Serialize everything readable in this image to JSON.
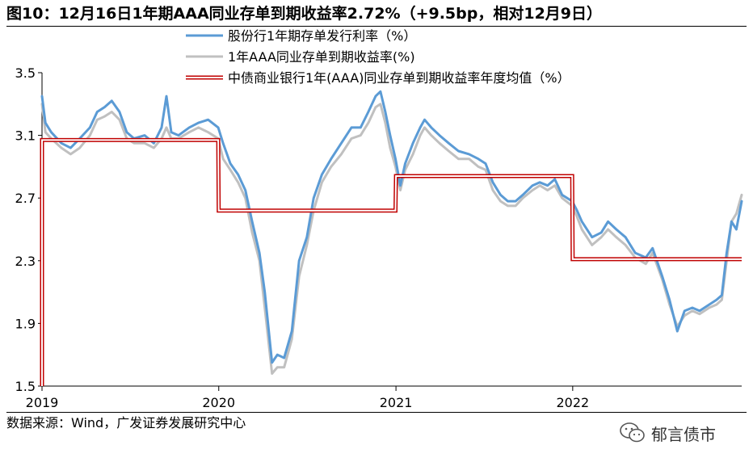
{
  "page": {
    "title": "图10：12月16日1年期AAA同业存单到期收益率2.72%（+9.5bp，相对12月9日）",
    "source": "数据来源：Wind，广发证券发展研究中心",
    "watermark": "郁言债市",
    "watermark_icon": "wechat-icon"
  },
  "chart_data": {
    "type": "line",
    "title": "",
    "xlabel": "",
    "ylabel": "",
    "x_ticks": [
      "2019",
      "2020",
      "2021",
      "2022"
    ],
    "y_ticks": [
      "1.5",
      "1.9",
      "2.3",
      "2.7",
      "3.1",
      "3.5"
    ],
    "xlim": [
      "2019-01-01",
      "2022-12-16"
    ],
    "ylim": [
      1.5,
      3.5
    ],
    "grid": false,
    "legend_position": "top-center",
    "series": [
      {
        "name": "股份行1年期存单发行利率（%）",
        "color": "#5b9bd5",
        "style": "line",
        "points": [
          [
            "2019-01-01",
            3.35
          ],
          [
            "2019-01-08",
            3.18
          ],
          [
            "2019-01-20",
            3.12
          ],
          [
            "2019-02-10",
            3.05
          ],
          [
            "2019-03-01",
            3.02
          ],
          [
            "2019-03-20",
            3.08
          ],
          [
            "2019-04-10",
            3.15
          ],
          [
            "2019-04-25",
            3.25
          ],
          [
            "2019-05-10",
            3.28
          ],
          [
            "2019-05-25",
            3.32
          ],
          [
            "2019-06-10",
            3.25
          ],
          [
            "2019-06-25",
            3.12
          ],
          [
            "2019-07-10",
            3.08
          ],
          [
            "2019-08-01",
            3.1
          ],
          [
            "2019-08-20",
            3.05
          ],
          [
            "2019-09-05",
            3.15
          ],
          [
            "2019-09-15",
            3.35
          ],
          [
            "2019-09-25",
            3.12
          ],
          [
            "2019-10-10",
            3.1
          ],
          [
            "2019-11-01",
            3.15
          ],
          [
            "2019-11-20",
            3.18
          ],
          [
            "2019-12-10",
            3.2
          ],
          [
            "2019-12-31",
            3.15
          ],
          [
            "2020-01-10",
            3.05
          ],
          [
            "2020-01-25",
            2.92
          ],
          [
            "2020-02-10",
            2.85
          ],
          [
            "2020-02-25",
            2.75
          ],
          [
            "2020-03-10",
            2.55
          ],
          [
            "2020-03-25",
            2.35
          ],
          [
            "2020-04-05",
            2.1
          ],
          [
            "2020-04-20",
            1.65
          ],
          [
            "2020-05-01",
            1.7
          ],
          [
            "2020-05-15",
            1.68
          ],
          [
            "2020-05-31",
            1.85
          ],
          [
            "2020-06-15",
            2.3
          ],
          [
            "2020-07-01",
            2.45
          ],
          [
            "2020-07-15",
            2.7
          ],
          [
            "2020-08-01",
            2.85
          ],
          [
            "2020-08-20",
            2.95
          ],
          [
            "2020-09-10",
            3.05
          ],
          [
            "2020-10-01",
            3.15
          ],
          [
            "2020-10-20",
            3.15
          ],
          [
            "2020-11-05",
            3.25
          ],
          [
            "2020-11-20",
            3.35
          ],
          [
            "2020-11-30",
            3.38
          ],
          [
            "2020-12-10",
            3.25
          ],
          [
            "2020-12-20",
            3.1
          ],
          [
            "2020-12-31",
            2.95
          ],
          [
            "2021-01-10",
            2.78
          ],
          [
            "2021-01-20",
            2.92
          ],
          [
            "2021-02-05",
            3.05
          ],
          [
            "2021-02-20",
            3.15
          ],
          [
            "2021-03-01",
            3.2
          ],
          [
            "2021-03-15",
            3.15
          ],
          [
            "2021-04-01",
            3.1
          ],
          [
            "2021-04-20",
            3.05
          ],
          [
            "2021-05-10",
            3.0
          ],
          [
            "2021-06-01",
            2.98
          ],
          [
            "2021-06-20",
            2.95
          ],
          [
            "2021-07-05",
            2.92
          ],
          [
            "2021-07-20",
            2.8
          ],
          [
            "2021-08-05",
            2.72
          ],
          [
            "2021-08-20",
            2.68
          ],
          [
            "2021-09-05",
            2.68
          ],
          [
            "2021-09-20",
            2.72
          ],
          [
            "2021-10-10",
            2.78
          ],
          [
            "2021-10-25",
            2.8
          ],
          [
            "2021-11-10",
            2.78
          ],
          [
            "2021-11-25",
            2.82
          ],
          [
            "2021-12-10",
            2.72
          ],
          [
            "2021-12-31",
            2.68
          ],
          [
            "2022-01-10",
            2.62
          ],
          [
            "2022-01-20",
            2.55
          ],
          [
            "2022-02-10",
            2.45
          ],
          [
            "2022-03-01",
            2.48
          ],
          [
            "2022-03-15",
            2.55
          ],
          [
            "2022-04-01",
            2.5
          ],
          [
            "2022-04-20",
            2.45
          ],
          [
            "2022-05-10",
            2.35
          ],
          [
            "2022-06-01",
            2.32
          ],
          [
            "2022-06-15",
            2.38
          ],
          [
            "2022-07-05",
            2.2
          ],
          [
            "2022-07-20",
            2.05
          ],
          [
            "2022-08-05",
            1.85
          ],
          [
            "2022-08-20",
            1.98
          ],
          [
            "2022-09-05",
            2.0
          ],
          [
            "2022-09-20",
            1.98
          ],
          [
            "2022-10-10",
            2.02
          ],
          [
            "2022-10-25",
            2.05
          ],
          [
            "2022-11-05",
            2.08
          ],
          [
            "2022-11-15",
            2.35
          ],
          [
            "2022-11-25",
            2.55
          ],
          [
            "2022-12-05",
            2.5
          ],
          [
            "2022-12-16",
            2.68
          ]
        ]
      },
      {
        "name": "1年AAA同业存单到期收益率(%)",
        "color": "#c0c0c0",
        "style": "line",
        "points": [
          [
            "2019-01-01",
            3.3
          ],
          [
            "2019-01-08",
            3.12
          ],
          [
            "2019-01-20",
            3.08
          ],
          [
            "2019-02-10",
            3.02
          ],
          [
            "2019-03-01",
            2.98
          ],
          [
            "2019-03-20",
            3.02
          ],
          [
            "2019-04-10",
            3.1
          ],
          [
            "2019-04-25",
            3.2
          ],
          [
            "2019-05-10",
            3.22
          ],
          [
            "2019-05-25",
            3.25
          ],
          [
            "2019-06-10",
            3.2
          ],
          [
            "2019-06-25",
            3.08
          ],
          [
            "2019-07-10",
            3.05
          ],
          [
            "2019-08-01",
            3.05
          ],
          [
            "2019-08-20",
            3.02
          ],
          [
            "2019-09-05",
            3.08
          ],
          [
            "2019-09-15",
            3.15
          ],
          [
            "2019-09-25",
            3.08
          ],
          [
            "2019-10-10",
            3.08
          ],
          [
            "2019-11-01",
            3.12
          ],
          [
            "2019-11-20",
            3.15
          ],
          [
            "2019-12-10",
            3.12
          ],
          [
            "2019-12-31",
            3.08
          ],
          [
            "2020-01-10",
            2.95
          ],
          [
            "2020-01-25",
            2.88
          ],
          [
            "2020-02-10",
            2.8
          ],
          [
            "2020-02-25",
            2.7
          ],
          [
            "2020-03-10",
            2.48
          ],
          [
            "2020-03-25",
            2.3
          ],
          [
            "2020-04-05",
            2.0
          ],
          [
            "2020-04-20",
            1.58
          ],
          [
            "2020-05-01",
            1.62
          ],
          [
            "2020-05-15",
            1.62
          ],
          [
            "2020-05-31",
            1.8
          ],
          [
            "2020-06-15",
            2.2
          ],
          [
            "2020-07-01",
            2.4
          ],
          [
            "2020-07-15",
            2.62
          ],
          [
            "2020-08-01",
            2.8
          ],
          [
            "2020-08-20",
            2.9
          ],
          [
            "2020-09-10",
            2.98
          ],
          [
            "2020-10-01",
            3.08
          ],
          [
            "2020-10-20",
            3.1
          ],
          [
            "2020-11-05",
            3.18
          ],
          [
            "2020-11-20",
            3.28
          ],
          [
            "2020-11-30",
            3.3
          ],
          [
            "2020-12-10",
            3.18
          ],
          [
            "2020-12-20",
            3.02
          ],
          [
            "2020-12-31",
            2.9
          ],
          [
            "2021-01-10",
            2.75
          ],
          [
            "2021-01-20",
            2.88
          ],
          [
            "2021-02-05",
            2.98
          ],
          [
            "2021-02-20",
            3.1
          ],
          [
            "2021-03-01",
            3.15
          ],
          [
            "2021-03-15",
            3.1
          ],
          [
            "2021-04-01",
            3.05
          ],
          [
            "2021-04-20",
            3.0
          ],
          [
            "2021-05-10",
            2.95
          ],
          [
            "2021-06-01",
            2.95
          ],
          [
            "2021-06-20",
            2.9
          ],
          [
            "2021-07-05",
            2.88
          ],
          [
            "2021-07-20",
            2.75
          ],
          [
            "2021-08-05",
            2.68
          ],
          [
            "2021-08-20",
            2.65
          ],
          [
            "2021-09-05",
            2.65
          ],
          [
            "2021-09-20",
            2.7
          ],
          [
            "2021-10-10",
            2.75
          ],
          [
            "2021-10-25",
            2.78
          ],
          [
            "2021-11-10",
            2.75
          ],
          [
            "2021-11-25",
            2.78
          ],
          [
            "2021-12-10",
            2.7
          ],
          [
            "2021-12-31",
            2.65
          ],
          [
            "2022-01-10",
            2.58
          ],
          [
            "2022-01-20",
            2.5
          ],
          [
            "2022-02-10",
            2.4
          ],
          [
            "2022-03-01",
            2.45
          ],
          [
            "2022-03-15",
            2.5
          ],
          [
            "2022-04-01",
            2.45
          ],
          [
            "2022-04-20",
            2.4
          ],
          [
            "2022-05-10",
            2.32
          ],
          [
            "2022-06-01",
            2.28
          ],
          [
            "2022-06-15",
            2.35
          ],
          [
            "2022-07-05",
            2.18
          ],
          [
            "2022-07-20",
            2.02
          ],
          [
            "2022-08-05",
            1.88
          ],
          [
            "2022-08-20",
            1.95
          ],
          [
            "2022-09-05",
            1.98
          ],
          [
            "2022-09-20",
            1.96
          ],
          [
            "2022-10-10",
            2.0
          ],
          [
            "2022-10-25",
            2.02
          ],
          [
            "2022-11-05",
            2.05
          ],
          [
            "2022-11-15",
            2.3
          ],
          [
            "2022-11-25",
            2.55
          ],
          [
            "2022-12-05",
            2.6
          ],
          [
            "2022-12-16",
            2.72
          ]
        ]
      },
      {
        "name": "中债商业银行1年(AAA)同业存单到期收益率年度均值（%）",
        "color": "#c00000",
        "style": "step",
        "points": [
          [
            "2019-01-01",
            3.07
          ],
          [
            "2019-12-31",
            3.07
          ],
          [
            "2020-01-01",
            2.62
          ],
          [
            "2020-12-31",
            2.62
          ],
          [
            "2021-01-01",
            2.84
          ],
          [
            "2021-12-31",
            2.84
          ],
          [
            "2022-01-01",
            2.31
          ],
          [
            "2022-12-16",
            2.31
          ]
        ]
      }
    ]
  }
}
